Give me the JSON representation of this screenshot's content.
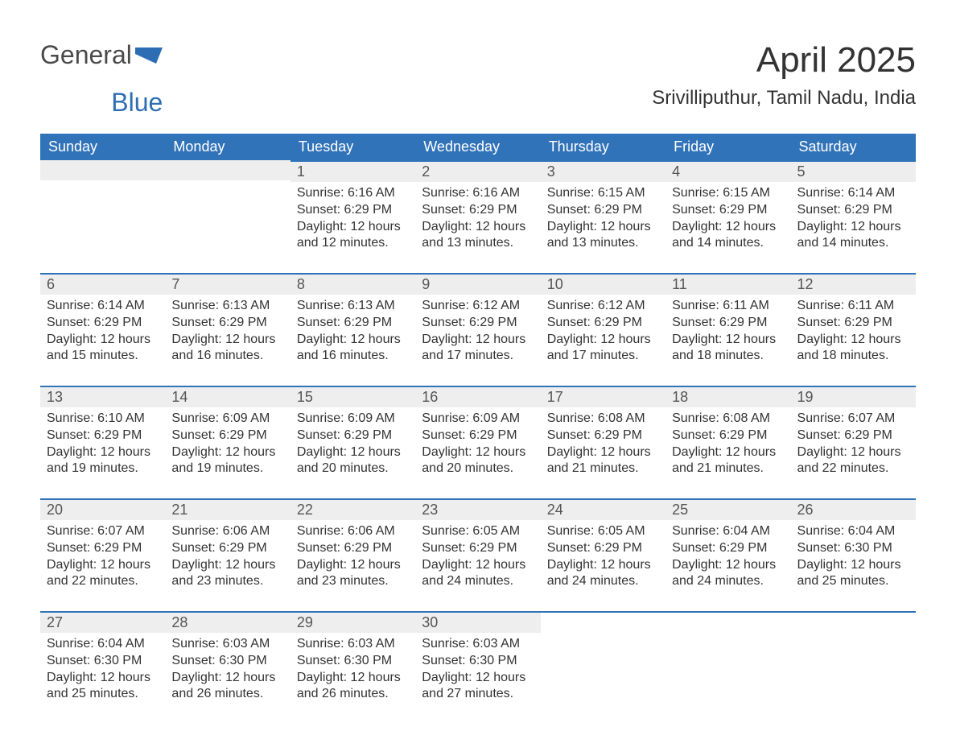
{
  "logo": {
    "text_general": "General",
    "text_blue": "Blue",
    "icon_color": "#2d6db4"
  },
  "title": {
    "month": "April 2025",
    "location": "Srivilliputhur, Tamil Nadu, India"
  },
  "colors": {
    "header_bg": "#3173b8",
    "header_text": "#ffffff",
    "daynum_bg": "#eeeeee",
    "daynum_border": "#3173b8",
    "body_text": "#333333",
    "page_bg": "#ffffff",
    "logo_gray": "#4a4a4a",
    "logo_blue": "#2d6db4"
  },
  "weekdays": [
    "Sunday",
    "Monday",
    "Tuesday",
    "Wednesday",
    "Thursday",
    "Friday",
    "Saturday"
  ],
  "labels": {
    "sunrise": "Sunrise:",
    "sunset": "Sunset:",
    "daylight": "Daylight:"
  },
  "grid": [
    [
      {
        "blank": true
      },
      {
        "blank": true
      },
      {
        "day": "1",
        "sunrise": "6:16 AM",
        "sunset": "6:29 PM",
        "daylight": "12 hours and 12 minutes."
      },
      {
        "day": "2",
        "sunrise": "6:16 AM",
        "sunset": "6:29 PM",
        "daylight": "12 hours and 13 minutes."
      },
      {
        "day": "3",
        "sunrise": "6:15 AM",
        "sunset": "6:29 PM",
        "daylight": "12 hours and 13 minutes."
      },
      {
        "day": "4",
        "sunrise": "6:15 AM",
        "sunset": "6:29 PM",
        "daylight": "12 hours and 14 minutes."
      },
      {
        "day": "5",
        "sunrise": "6:14 AM",
        "sunset": "6:29 PM",
        "daylight": "12 hours and 14 minutes."
      }
    ],
    [
      {
        "day": "6",
        "sunrise": "6:14 AM",
        "sunset": "6:29 PM",
        "daylight": "12 hours and 15 minutes."
      },
      {
        "day": "7",
        "sunrise": "6:13 AM",
        "sunset": "6:29 PM",
        "daylight": "12 hours and 16 minutes."
      },
      {
        "day": "8",
        "sunrise": "6:13 AM",
        "sunset": "6:29 PM",
        "daylight": "12 hours and 16 minutes."
      },
      {
        "day": "9",
        "sunrise": "6:12 AM",
        "sunset": "6:29 PM",
        "daylight": "12 hours and 17 minutes."
      },
      {
        "day": "10",
        "sunrise": "6:12 AM",
        "sunset": "6:29 PM",
        "daylight": "12 hours and 17 minutes."
      },
      {
        "day": "11",
        "sunrise": "6:11 AM",
        "sunset": "6:29 PM",
        "daylight": "12 hours and 18 minutes."
      },
      {
        "day": "12",
        "sunrise": "6:11 AM",
        "sunset": "6:29 PM",
        "daylight": "12 hours and 18 minutes."
      }
    ],
    [
      {
        "day": "13",
        "sunrise": "6:10 AM",
        "sunset": "6:29 PM",
        "daylight": "12 hours and 19 minutes."
      },
      {
        "day": "14",
        "sunrise": "6:09 AM",
        "sunset": "6:29 PM",
        "daylight": "12 hours and 19 minutes."
      },
      {
        "day": "15",
        "sunrise": "6:09 AM",
        "sunset": "6:29 PM",
        "daylight": "12 hours and 20 minutes."
      },
      {
        "day": "16",
        "sunrise": "6:09 AM",
        "sunset": "6:29 PM",
        "daylight": "12 hours and 20 minutes."
      },
      {
        "day": "17",
        "sunrise": "6:08 AM",
        "sunset": "6:29 PM",
        "daylight": "12 hours and 21 minutes."
      },
      {
        "day": "18",
        "sunrise": "6:08 AM",
        "sunset": "6:29 PM",
        "daylight": "12 hours and 21 minutes."
      },
      {
        "day": "19",
        "sunrise": "6:07 AM",
        "sunset": "6:29 PM",
        "daylight": "12 hours and 22 minutes."
      }
    ],
    [
      {
        "day": "20",
        "sunrise": "6:07 AM",
        "sunset": "6:29 PM",
        "daylight": "12 hours and 22 minutes."
      },
      {
        "day": "21",
        "sunrise": "6:06 AM",
        "sunset": "6:29 PM",
        "daylight": "12 hours and 23 minutes."
      },
      {
        "day": "22",
        "sunrise": "6:06 AM",
        "sunset": "6:29 PM",
        "daylight": "12 hours and 23 minutes."
      },
      {
        "day": "23",
        "sunrise": "6:05 AM",
        "sunset": "6:29 PM",
        "daylight": "12 hours and 24 minutes."
      },
      {
        "day": "24",
        "sunrise": "6:05 AM",
        "sunset": "6:29 PM",
        "daylight": "12 hours and 24 minutes."
      },
      {
        "day": "25",
        "sunrise": "6:04 AM",
        "sunset": "6:29 PM",
        "daylight": "12 hours and 24 minutes."
      },
      {
        "day": "26",
        "sunrise": "6:04 AM",
        "sunset": "6:30 PM",
        "daylight": "12 hours and 25 minutes."
      }
    ],
    [
      {
        "day": "27",
        "sunrise": "6:04 AM",
        "sunset": "6:30 PM",
        "daylight": "12 hours and 25 minutes."
      },
      {
        "day": "28",
        "sunrise": "6:03 AM",
        "sunset": "6:30 PM",
        "daylight": "12 hours and 26 minutes."
      },
      {
        "day": "29",
        "sunrise": "6:03 AM",
        "sunset": "6:30 PM",
        "daylight": "12 hours and 26 minutes."
      },
      {
        "day": "30",
        "sunrise": "6:03 AM",
        "sunset": "6:30 PM",
        "daylight": "12 hours and 27 minutes."
      },
      {
        "blank": true,
        "noborder": true
      },
      {
        "blank": true,
        "noborder": true
      },
      {
        "blank": true,
        "noborder": true
      }
    ]
  ]
}
